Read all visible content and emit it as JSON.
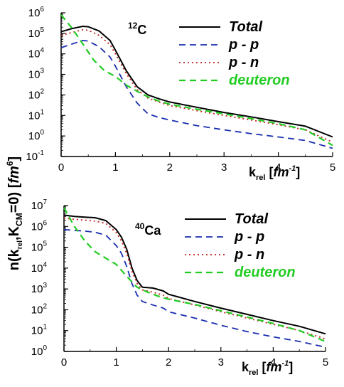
{
  "y_label": {
    "main": "n(k",
    "sub1": "rel",
    "mid": ",K",
    "sub2": "CM",
    "tail": "=0) [",
    "unit": "fm",
    "unit_exp": "6",
    "close": "]"
  },
  "x_label": {
    "main": "k",
    "sub": "rel",
    "open": " [",
    "unit": "fm",
    "unit_exp": "-1",
    "close": "]"
  },
  "colors": {
    "Total": "#000000",
    "p - p": "#1a2eb0",
    "p - n": "#c0201e",
    "deuteron": "#22cc22"
  },
  "chart_data": [
    {
      "type": "line",
      "nucleus": {
        "mass": "12",
        "symbol": "C"
      },
      "xlim": [
        0,
        5
      ],
      "ylim_log10": [
        -1,
        6
      ],
      "x_ticks": [
        "0",
        "1",
        "2",
        "3",
        "4",
        "5"
      ],
      "y_ticks": [
        {
          "base": "10",
          "exp": "-1"
        },
        {
          "base": "10",
          "exp": "0"
        },
        {
          "base": "10",
          "exp": "1"
        },
        {
          "base": "10",
          "exp": "2"
        },
        {
          "base": "10",
          "exp": "3"
        },
        {
          "base": "10",
          "exp": "4"
        },
        {
          "base": "10",
          "exp": "5"
        },
        {
          "base": "10",
          "exp": "6"
        }
      ],
      "legend_position": "top-right",
      "series": [
        {
          "name": "Total",
          "style": "solid",
          "x": [
            0,
            0.2,
            0.4,
            0.5,
            0.7,
            0.9,
            1.0,
            1.2,
            1.4,
            1.6,
            1.8,
            2.0,
            2.5,
            3.0,
            3.5,
            4.0,
            4.5,
            5.0
          ],
          "y": [
            120000,
            170000,
            220000,
            210000,
            130000,
            45000,
            15000,
            1500,
            250,
            100,
            65,
            45,
            25,
            14,
            8.5,
            5,
            3,
            0.9
          ]
        },
        {
          "name": "p - p",
          "style": "dashed",
          "x": [
            0,
            0.2,
            0.4,
            0.5,
            0.7,
            0.9,
            1.0,
            1.2,
            1.4,
            1.6,
            1.8,
            2.0,
            2.5,
            3.0,
            3.5,
            4.0,
            4.5,
            5.0
          ],
          "y": [
            20000,
            30000,
            45000,
            42000,
            22000,
            7000,
            2500,
            250,
            40,
            12,
            8,
            6,
            3.2,
            2,
            1.3,
            0.9,
            0.6,
            0.25
          ]
        },
        {
          "name": "p - n",
          "style": "dotted",
          "x": [
            0,
            0.2,
            0.4,
            0.5,
            0.7,
            0.9,
            1.0,
            1.2,
            1.4,
            1.6,
            1.8,
            2.0,
            2.5,
            3.0,
            3.5,
            4.0,
            4.5,
            5.0
          ],
          "y": [
            80000,
            110000,
            150000,
            140000,
            80000,
            28000,
            10000,
            1100,
            180,
            70,
            45,
            30,
            17,
            10,
            6,
            3.5,
            2,
            0.5
          ]
        },
        {
          "name": "deuteron",
          "style": "dashed",
          "x": [
            0,
            0.2,
            0.4,
            0.6,
            0.8,
            1.0,
            1.2,
            1.4,
            1.6,
            1.8,
            2.0,
            2.5,
            3.0,
            3.5,
            4.0,
            4.5,
            5.0
          ],
          "y": [
            800000,
            180000,
            30000,
            5000,
            1500,
            800,
            300,
            150,
            80,
            50,
            35,
            20,
            12,
            7,
            4,
            2,
            0.35
          ]
        }
      ]
    },
    {
      "type": "line",
      "nucleus": {
        "mass": "40",
        "symbol": "Ca"
      },
      "xlim": [
        0,
        5
      ],
      "ylim_log10": [
        0,
        7
      ],
      "x_ticks": [
        "0",
        "1",
        "2",
        "3",
        "4",
        "5"
      ],
      "y_ticks": [
        {
          "base": "10",
          "exp": "0"
        },
        {
          "base": "10",
          "exp": "1"
        },
        {
          "base": "10",
          "exp": "2"
        },
        {
          "base": "10",
          "exp": "3"
        },
        {
          "base": "10",
          "exp": "4"
        },
        {
          "base": "10",
          "exp": "5"
        },
        {
          "base": "10",
          "exp": "6"
        },
        {
          "base": "10",
          "exp": "7"
        }
      ],
      "legend_position": "top-right",
      "series": [
        {
          "name": "Total",
          "style": "solid",
          "x": [
            0,
            0.2,
            0.4,
            0.6,
            0.8,
            1.0,
            1.1,
            1.2,
            1.3,
            1.4,
            1.5,
            1.7,
            1.9,
            2.0,
            2.5,
            3.0,
            3.5,
            4.0,
            4.5,
            5.0
          ],
          "y": [
            3500000,
            3000000,
            2800000,
            2600000,
            1900000,
            700000,
            300000,
            80000,
            10000,
            2500,
            1200,
            1100,
            800,
            550,
            250,
            120,
            60,
            30,
            16,
            7
          ]
        },
        {
          "name": "p - p",
          "style": "dashed",
          "x": [
            0,
            0.2,
            0.4,
            0.6,
            0.8,
            1.0,
            1.1,
            1.2,
            1.3,
            1.4,
            1.5,
            1.7,
            1.9,
            2.0,
            2.5,
            3.0,
            3.5,
            4.0,
            4.5,
            5.0
          ],
          "y": [
            700000,
            650000,
            600000,
            520000,
            380000,
            120000,
            50000,
            12000,
            1800,
            500,
            250,
            170,
            120,
            80,
            40,
            18,
            9,
            5,
            3,
            1.6
          ]
        },
        {
          "name": "p - n",
          "style": "dotted",
          "x": [
            0,
            0.2,
            0.4,
            0.6,
            0.8,
            1.0,
            1.1,
            1.2,
            1.3,
            1.4,
            1.5,
            1.7,
            1.9,
            2.0,
            2.5,
            3.0,
            3.5,
            4.0,
            4.5,
            5.0
          ],
          "y": [
            2500000,
            2200000,
            2000000,
            1800000,
            1400000,
            500000,
            200000,
            50000,
            7000,
            1800,
            900,
            700,
            500,
            350,
            170,
            80,
            40,
            20,
            10,
            4
          ]
        },
        {
          "name": "deuteron",
          "style": "dashed",
          "x": [
            0,
            0.2,
            0.4,
            0.6,
            0.8,
            1.0,
            1.2,
            1.4,
            1.6,
            1.8,
            2.0,
            2.5,
            3.0,
            3.5,
            4.0,
            4.5,
            5.0
          ],
          "y": [
            8000000,
            1000000,
            200000,
            60000,
            30000,
            15000,
            4000,
            1200,
            700,
            450,
            320,
            180,
            90,
            45,
            22,
            10,
            3
          ]
        }
      ]
    }
  ]
}
